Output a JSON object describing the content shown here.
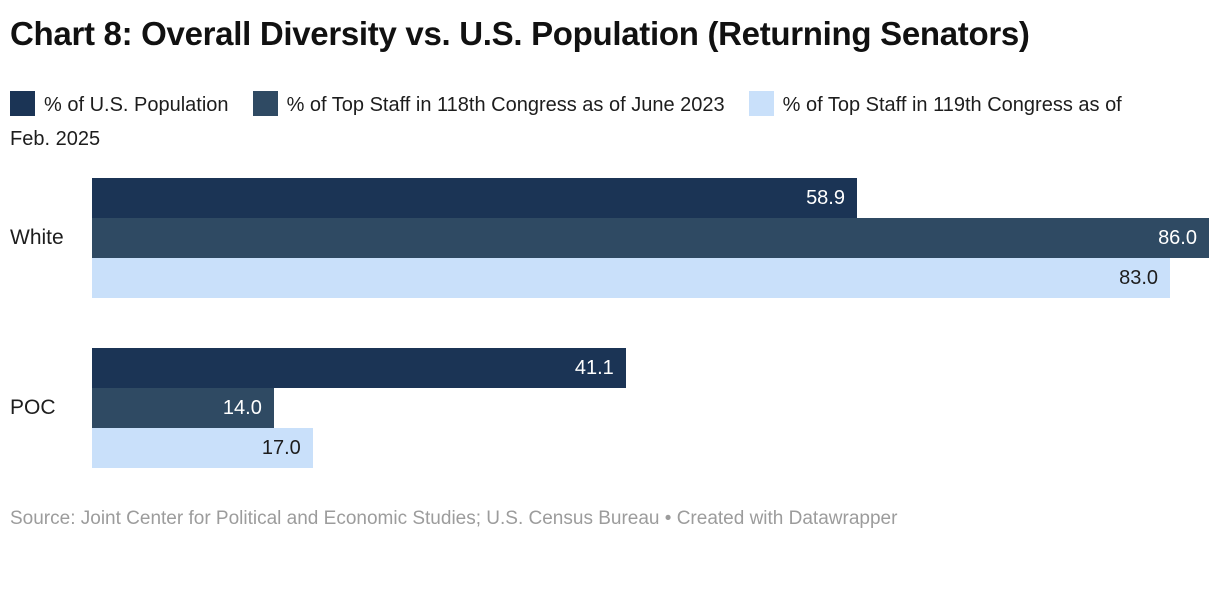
{
  "title": "Chart 8: Overall Diversity vs. U.S. Population (Returning Senators)",
  "colors": {
    "background": "#ffffff",
    "navy": "#1b3455",
    "slate": "#2f4a63",
    "light_blue": "#c9e0fa",
    "title_text": "#111111",
    "label_text": "#1d1d1d",
    "source_text": "#9c9c9c"
  },
  "legend": {
    "items": [
      {
        "label": "% of U.S. Population",
        "color": "#1b3455"
      },
      {
        "label": "% of Top Staff in 118th Congress as of June 2023",
        "color": "#2f4a63"
      },
      {
        "label": "% of Top Staff in 119th Congress as of Feb. 2025",
        "color": "#c9e0fa"
      }
    ]
  },
  "chart_data": {
    "type": "bar",
    "orientation": "horizontal",
    "title": "Chart 8: Overall Diversity vs. U.S. Population (Returning Senators)",
    "categories": [
      "White",
      "POC"
    ],
    "series": [
      {
        "name": "% of U.S. Population",
        "color": "#1b3455",
        "text_color": "#ffffff",
        "values": [
          58.9,
          41.1
        ]
      },
      {
        "name": "% of Top Staff in 118th Congress as of June 2023",
        "color": "#2f4a63",
        "text_color": "#ffffff",
        "values": [
          86.0,
          14.0
        ]
      },
      {
        "name": "% of Top Staff in 119th Congress as of Feb. 2025",
        "color": "#c9e0fa",
        "text_color": "#1d1d1d",
        "values": [
          83.0,
          17.0
        ]
      }
    ],
    "value_label_format": "one_decimal",
    "xlim": [
      0,
      86.0
    ],
    "grid": false,
    "axis_ticks": "none",
    "legend_position": "top",
    "value_labels_position": "inside-end"
  },
  "footer": {
    "source": "Source: Joint Center for Political and Economic Studies; U.S. Census Bureau • Created with Datawrapper"
  }
}
